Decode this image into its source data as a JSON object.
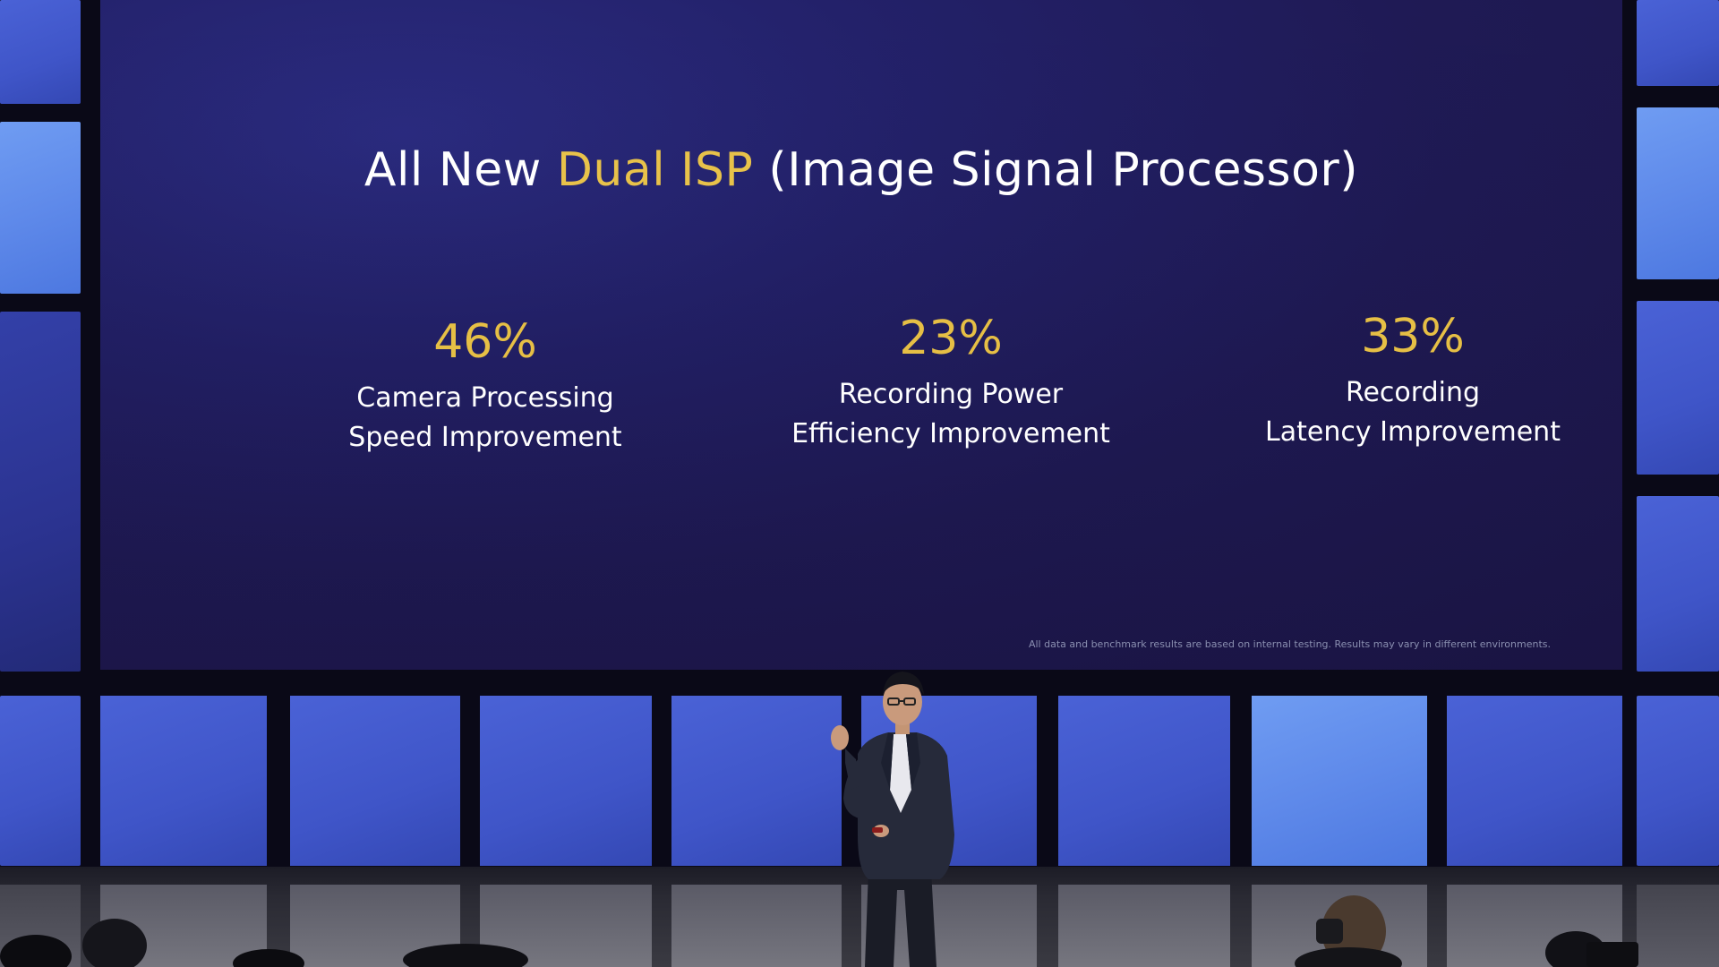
{
  "slide": {
    "title_prefix": "All New ",
    "title_highlight": "Dual ISP",
    "title_suffix": " (Image Signal Processor)",
    "stats": [
      {
        "value": "46%",
        "label_line1": "Camera Processing",
        "label_line2": "Speed Improvement"
      },
      {
        "value": "23%",
        "label_line1": "Recording Power",
        "label_line2": "Efficiency Improvement"
      },
      {
        "value": "33%",
        "label_line1": "Recording",
        "label_line2": "Latency Improvement"
      }
    ],
    "disclaimer": "All data and benchmark results are based on internal testing. Results may vary in different environments.",
    "colors": {
      "highlight": "#e6bf45",
      "text": "#ffffff",
      "background": "#1f1a55"
    }
  }
}
